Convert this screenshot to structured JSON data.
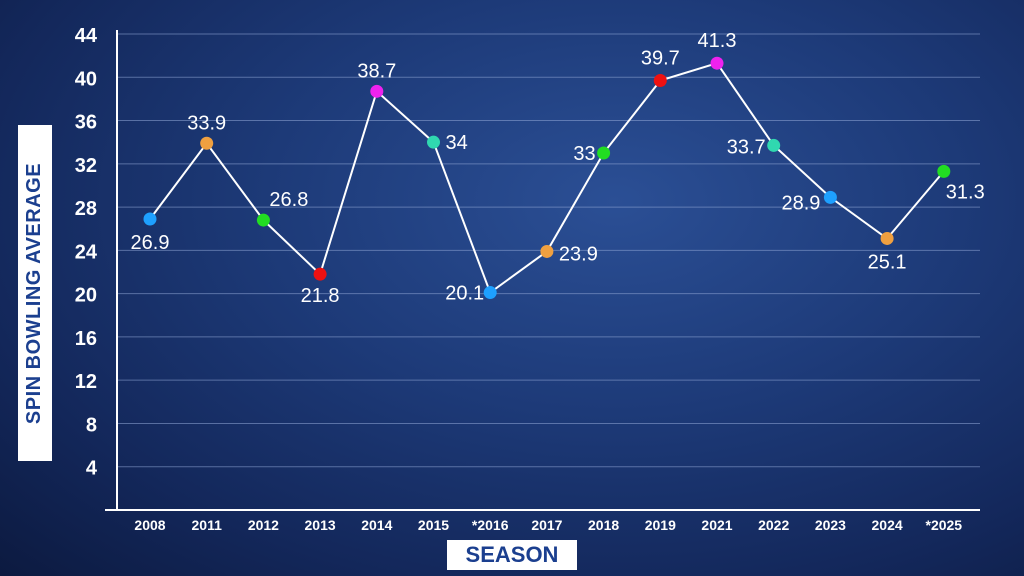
{
  "chart_data": {
    "type": "line",
    "xlabel": "SEASON",
    "ylabel": "SPIN BOWLING AVERAGE",
    "ylim": [
      0,
      44
    ],
    "yticks": [
      4,
      8,
      12,
      16,
      20,
      24,
      28,
      32,
      36,
      40,
      44
    ],
    "grid": true,
    "categories": [
      "2008",
      "2011",
      "2012",
      "2013",
      "2014",
      "2015",
      "*2016",
      "2017",
      "2018",
      "2019",
      "2021",
      "2022",
      "2023",
      "2024",
      "*2025"
    ],
    "series": [
      {
        "values": [
          26.9,
          33.9,
          26.8,
          21.8,
          38.7,
          34,
          20.1,
          23.9,
          33,
          39.7,
          41.3,
          33.7,
          28.9,
          25.1,
          31.3
        ],
        "labels": [
          "26.9",
          "33.9",
          "26.8",
          "21.8",
          "38.7",
          "34",
          "20.1",
          "23.9",
          "33",
          "39.7",
          "41.3",
          "33.7",
          "28.9",
          "25.1",
          "31.3"
        ],
        "point_colors": [
          "#1ea0ff",
          "#f0a040",
          "#22dd22",
          "#ee1111",
          "#ee22ee",
          "#30d8b0",
          "#1ea0ff",
          "#f0a040",
          "#22dd22",
          "#ee1111",
          "#ee22ee",
          "#30d8b0",
          "#1ea0ff",
          "#f0a040",
          "#22dd22"
        ]
      }
    ],
    "line_color": "#ffffff",
    "grid_color": "#8fa6d6"
  }
}
